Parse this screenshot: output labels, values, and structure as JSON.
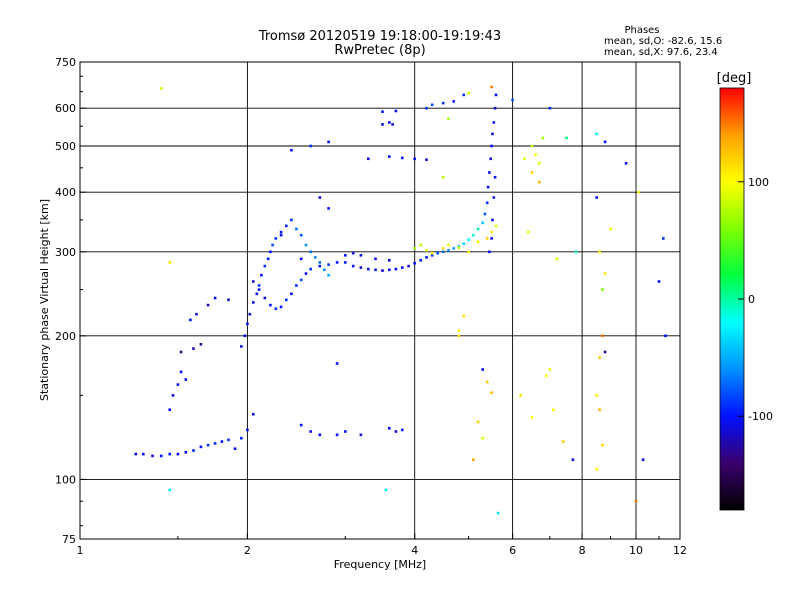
{
  "chart_data": {
    "type": "scatter",
    "title": "Tromsø 20120519 19:18:00-19:19:43",
    "subtitle": "RwPretec (8p)",
    "xlabel": "Frequency [MHz]",
    "ylabel": "Stationary phase Virtual Height [km]",
    "x_scale": "log",
    "y_scale": "log",
    "xlim": [
      1,
      12
    ],
    "ylim": [
      75,
      750
    ],
    "x_ticks": [
      1,
      2,
      4,
      6,
      8,
      10,
      12
    ],
    "x_tick_labels": [
      "1",
      "2",
      "4",
      "6",
      "8",
      "10",
      "12"
    ],
    "y_ticks": [
      75,
      100,
      200,
      300,
      400,
      500,
      600,
      750
    ],
    "y_tick_labels": [
      "75",
      "100",
      "200",
      "300",
      "400",
      "500",
      "600",
      "750"
    ],
    "grid": true,
    "phase_stats": {
      "heading": "Phases",
      "line_o": "mean, sd,O: -82.6, 15.6",
      "line_x": "mean, sd,X:  97.6, 23.4"
    },
    "colorbar": {
      "label": "[deg]",
      "range": [
        -180,
        180
      ],
      "ticks": [
        100,
        0,
        -100
      ],
      "tick_labels": [
        "100",
        "0",
        "-100"
      ],
      "colors": [
        "#000000",
        "#3a006e",
        "#0010ff",
        "#0090ff",
        "#00ffff",
        "#00ff40",
        "#80ff00",
        "#ffff00",
        "#ffa000",
        "#ff0000"
      ]
    },
    "series": [
      {
        "points": [
          [
            1.26,
            113,
            -105
          ],
          [
            1.3,
            113,
            -100
          ],
          [
            1.35,
            112,
            -110
          ],
          [
            1.4,
            112,
            -100
          ],
          [
            1.45,
            113,
            -95
          ],
          [
            1.5,
            113,
            -100
          ],
          [
            1.55,
            114,
            -100
          ],
          [
            1.6,
            115,
            -95
          ],
          [
            1.65,
            117,
            -100
          ],
          [
            1.7,
            118,
            -90
          ],
          [
            1.75,
            119,
            -95
          ],
          [
            1.8,
            120,
            -100
          ],
          [
            1.85,
            121,
            -90
          ],
          [
            1.9,
            116,
            -105
          ],
          [
            1.95,
            122,
            -95
          ],
          [
            2.0,
            127,
            -100
          ],
          [
            2.05,
            137,
            -105
          ],
          [
            1.45,
            140,
            -100
          ],
          [
            1.47,
            150,
            -110
          ],
          [
            1.5,
            158,
            -100
          ],
          [
            1.55,
            162,
            -105
          ],
          [
            1.52,
            168,
            -100
          ],
          [
            1.52,
            185,
            -130
          ],
          [
            1.6,
            188,
            -120
          ],
          [
            1.65,
            192,
            -125
          ],
          [
            1.58,
            216,
            -100
          ],
          [
            1.62,
            222,
            -110
          ],
          [
            1.7,
            232,
            -120
          ],
          [
            1.75,
            240,
            -100
          ],
          [
            1.85,
            238,
            -110
          ],
          [
            1.95,
            190,
            -110
          ],
          [
            1.98,
            200,
            -100
          ],
          [
            2.0,
            212,
            -100
          ],
          [
            2.02,
            222,
            -110
          ],
          [
            2.05,
            235,
            -100
          ],
          [
            2.08,
            245,
            -100
          ],
          [
            2.1,
            255,
            -90
          ],
          [
            2.12,
            268,
            -100
          ],
          [
            2.15,
            280,
            -90
          ],
          [
            2.18,
            290,
            -95
          ],
          [
            2.2,
            300,
            -100
          ],
          [
            2.22,
            310,
            -80
          ],
          [
            2.25,
            320,
            -90
          ],
          [
            2.3,
            330,
            -100
          ],
          [
            2.35,
            340,
            -95
          ],
          [
            2.4,
            350,
            -90
          ],
          [
            2.45,
            335,
            -70
          ],
          [
            2.5,
            325,
            -80
          ],
          [
            2.55,
            310,
            -60
          ],
          [
            2.6,
            300,
            -70
          ],
          [
            2.65,
            292,
            -60
          ],
          [
            2.7,
            285,
            -70
          ],
          [
            2.75,
            275,
            -60
          ],
          [
            2.8,
            268,
            -50
          ],
          [
            2.05,
            260,
            -110
          ],
          [
            2.1,
            250,
            -100
          ],
          [
            2.15,
            240,
            -110
          ],
          [
            2.2,
            232,
            -100
          ],
          [
            2.25,
            228,
            -90
          ],
          [
            2.3,
            230,
            -100
          ],
          [
            2.35,
            238,
            -90
          ],
          [
            2.4,
            245,
            -100
          ],
          [
            2.45,
            255,
            -90
          ],
          [
            2.5,
            262,
            -80
          ],
          [
            2.55,
            270,
            -100
          ],
          [
            2.6,
            276,
            -90
          ],
          [
            2.7,
            280,
            -100
          ],
          [
            2.8,
            282,
            -90
          ],
          [
            2.9,
            285,
            -100
          ],
          [
            3.0,
            285,
            -95
          ],
          [
            3.1,
            280,
            -100
          ],
          [
            3.2,
            278,
            -110
          ],
          [
            3.3,
            276,
            -105
          ],
          [
            3.4,
            275,
            -100
          ],
          [
            3.5,
            274,
            -110
          ],
          [
            3.6,
            275,
            -100
          ],
          [
            3.7,
            276,
            -105
          ],
          [
            3.8,
            278,
            -100
          ],
          [
            3.9,
            280,
            -110
          ],
          [
            4.0,
            284,
            -100
          ],
          [
            4.1,
            288,
            -95
          ],
          [
            4.2,
            292,
            -100
          ],
          [
            4.3,
            295,
            -90
          ],
          [
            4.4,
            298,
            -80
          ],
          [
            4.5,
            300,
            -70
          ],
          [
            4.6,
            302,
            -60
          ],
          [
            4.7,
            305,
            -50
          ],
          [
            4.8,
            308,
            -40
          ],
          [
            4.9,
            312,
            -30
          ],
          [
            5.0,
            318,
            -20
          ],
          [
            5.1,
            325,
            -10
          ],
          [
            5.2,
            335,
            0
          ],
          [
            5.3,
            345,
            -40
          ],
          [
            5.35,
            360,
            -80
          ],
          [
            5.4,
            380,
            -90
          ],
          [
            5.42,
            410,
            -100
          ],
          [
            5.45,
            440,
            -100
          ],
          [
            5.48,
            470,
            -110
          ],
          [
            5.5,
            500,
            -100
          ],
          [
            5.52,
            530,
            -110
          ],
          [
            5.55,
            560,
            -100
          ],
          [
            5.58,
            600,
            -110
          ],
          [
            5.6,
            640,
            -100
          ],
          [
            3.0,
            295,
            -100
          ],
          [
            3.1,
            298,
            -110
          ],
          [
            3.2,
            295,
            -100
          ],
          [
            3.4,
            290,
            -105
          ],
          [
            3.6,
            288,
            -110
          ],
          [
            4.0,
            305,
            70
          ],
          [
            4.1,
            310,
            80
          ],
          [
            4.2,
            302,
            90
          ],
          [
            4.3,
            298,
            100
          ],
          [
            4.5,
            305,
            110
          ],
          [
            4.6,
            310,
            90
          ],
          [
            4.8,
            306,
            80
          ],
          [
            5.0,
            300,
            100
          ],
          [
            5.2,
            315,
            110
          ],
          [
            5.4,
            320,
            120
          ],
          [
            5.5,
            330,
            110
          ],
          [
            5.6,
            340,
            90
          ],
          [
            5.45,
            300,
            -100
          ],
          [
            5.5,
            320,
            -110
          ],
          [
            5.52,
            350,
            -100
          ],
          [
            5.55,
            390,
            -110
          ],
          [
            5.58,
            430,
            -100
          ],
          [
            3.5,
            555,
            -110
          ],
          [
            3.6,
            560,
            -100
          ],
          [
            3.65,
            555,
            -110
          ],
          [
            3.5,
            590,
            -100
          ],
          [
            3.7,
            592,
            -105
          ],
          [
            4.2,
            600,
            -90
          ],
          [
            4.3,
            610,
            -80
          ],
          [
            4.5,
            615,
            -90
          ],
          [
            4.7,
            620,
            -100
          ],
          [
            4.9,
            640,
            -90
          ],
          [
            5.0,
            645,
            80
          ],
          [
            2.4,
            490,
            -100
          ],
          [
            2.6,
            500,
            -90
          ],
          [
            2.8,
            510,
            -100
          ],
          [
            3.3,
            470,
            -110
          ],
          [
            3.6,
            475,
            -100
          ],
          [
            3.8,
            472,
            -105
          ],
          [
            4.0,
            470,
            -100
          ],
          [
            4.2,
            468,
            -110
          ],
          [
            2.5,
            130,
            -100
          ],
          [
            2.6,
            126,
            -110
          ],
          [
            2.7,
            124,
            -100
          ],
          [
            2.9,
            124,
            -105
          ],
          [
            3.0,
            126,
            -100
          ],
          [
            3.2,
            124,
            -110
          ],
          [
            3.6,
            128,
            -100
          ],
          [
            3.7,
            126,
            -110
          ],
          [
            3.8,
            127,
            -100
          ],
          [
            2.9,
            175,
            -100
          ],
          [
            2.8,
            370,
            -100
          ],
          [
            2.7,
            390,
            -110
          ],
          [
            2.5,
            290,
            -100
          ],
          [
            2.3,
            325,
            -100
          ],
          [
            1.4,
            660,
            80
          ],
          [
            1.45,
            95,
            -20
          ],
          [
            1.45,
            285,
            110
          ],
          [
            3.55,
            95,
            -20
          ],
          [
            5.65,
            85,
            -30
          ],
          [
            5.5,
            665,
            150
          ],
          [
            6.0,
            625,
            -80
          ],
          [
            6.3,
            470,
            90
          ],
          [
            6.5,
            500,
            80
          ],
          [
            6.6,
            480,
            100
          ],
          [
            6.7,
            460,
            90
          ],
          [
            6.5,
            440,
            120
          ],
          [
            6.7,
            420,
            130
          ],
          [
            6.8,
            520,
            70
          ],
          [
            7.0,
            600,
            -90
          ],
          [
            7.5,
            520,
            10
          ],
          [
            7.8,
            300,
            -10
          ],
          [
            7.2,
            290,
            90
          ],
          [
            8.5,
            390,
            -100
          ],
          [
            8.5,
            530,
            -20
          ],
          [
            8.8,
            510,
            -100
          ],
          [
            8.6,
            300,
            100
          ],
          [
            8.7,
            250,
            60
          ],
          [
            8.8,
            270,
            110
          ],
          [
            8.5,
            150,
            110
          ],
          [
            8.6,
            140,
            130
          ],
          [
            8.7,
            118,
            120
          ],
          [
            8.5,
            105,
            100
          ],
          [
            8.6,
            180,
            120
          ],
          [
            8.8,
            185,
            -130
          ],
          [
            9.0,
            335,
            100
          ],
          [
            9.6,
            460,
            -100
          ],
          [
            10.3,
            110,
            -110
          ],
          [
            10.0,
            90,
            150
          ],
          [
            10.1,
            400,
            100
          ],
          [
            11.0,
            260,
            -100
          ],
          [
            11.2,
            320,
            -90
          ],
          [
            11.3,
            200,
            -100
          ],
          [
            8.7,
            200,
            150
          ],
          [
            4.8,
            205,
            100
          ],
          [
            4.9,
            220,
            110
          ],
          [
            5.3,
            170,
            -100
          ],
          [
            5.4,
            160,
            120
          ],
          [
            5.5,
            152,
            130
          ],
          [
            5.2,
            132,
            120
          ],
          [
            5.3,
            122,
            90
          ],
          [
            5.1,
            110,
            140
          ],
          [
            6.2,
            150,
            110
          ],
          [
            6.5,
            135,
            100
          ],
          [
            6.9,
            165,
            100
          ],
          [
            7.0,
            170,
            90
          ],
          [
            7.1,
            140,
            100
          ],
          [
            7.4,
            120,
            120
          ],
          [
            7.7,
            110,
            -110
          ],
          [
            4.5,
            430,
            80
          ],
          [
            4.6,
            570,
            70
          ],
          [
            4.8,
            200,
            110
          ],
          [
            6.4,
            330,
            100
          ]
        ]
      }
    ]
  }
}
